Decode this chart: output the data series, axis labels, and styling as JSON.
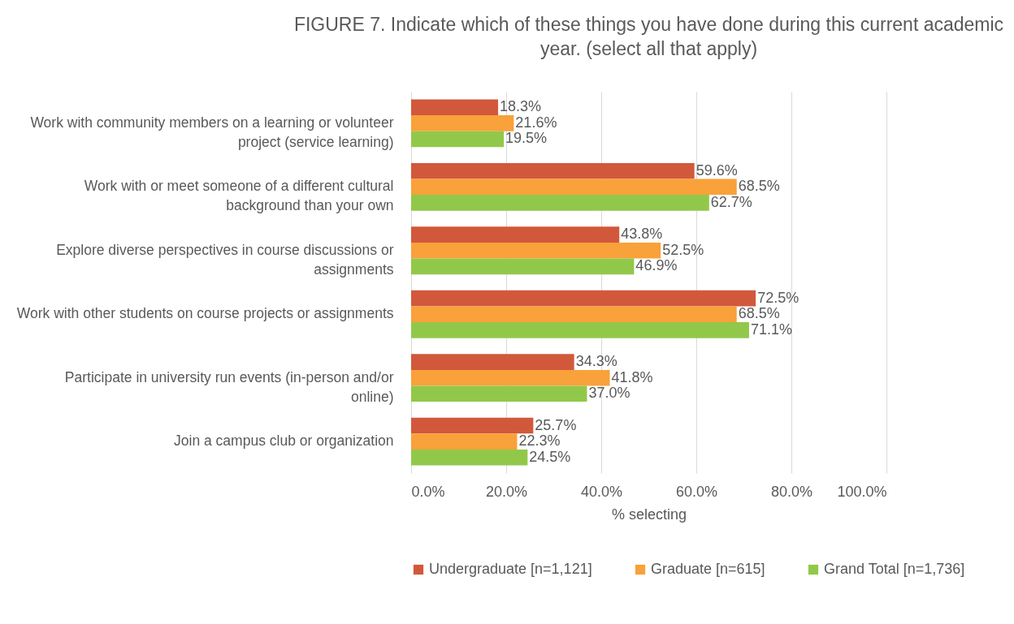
{
  "chart_data": {
    "type": "bar",
    "orientation": "horizontal",
    "title": "FIGURE 7. Indicate which of these things you have done during this current academic year. (select all that apply)",
    "xlabel": "% selecting",
    "categories": [
      "Work with community members on a learning or volunteer project (service learning)",
      "Work with or meet someone of a different cultural background than your own",
      "Explore diverse perspectives in course discussions or assignments",
      "Work with other students on course projects or assignments",
      "Participate in university run events (in-person and/or online)",
      "Join a campus club or organization"
    ],
    "series": [
      {
        "name": "Undergraduate [n=1,121]",
        "color": "#d2583c",
        "values": [
          18.3,
          59.6,
          43.8,
          72.5,
          34.3,
          25.7
        ],
        "value_labels": [
          "18.3%",
          "59.6%",
          "43.8%",
          "72.5%",
          "34.3%",
          "25.7%"
        ]
      },
      {
        "name": "Graduate [n=615]",
        "color": "#f9a13a",
        "values": [
          21.6,
          68.5,
          52.5,
          68.5,
          41.8,
          22.3
        ],
        "value_labels": [
          "21.6%",
          "68.5%",
          "52.5%",
          "68.5%",
          "41.8%",
          "22.3%"
        ]
      },
      {
        "name": "Grand Total [n=1,736]",
        "color": "#92c84a",
        "values": [
          19.5,
          62.7,
          46.9,
          71.1,
          37.0,
          24.5
        ],
        "value_labels": [
          "19.5%",
          "62.7%",
          "46.9%",
          "71.1%",
          "37.0%",
          "24.5%"
        ]
      }
    ],
    "xlim": [
      0,
      100
    ],
    "xticks": [
      {
        "value": 0,
        "label": "0.0%"
      },
      {
        "value": 20,
        "label": "20.0%"
      },
      {
        "value": 40,
        "label": "40.0%"
      },
      {
        "value": 60,
        "label": "60.0%"
      },
      {
        "value": 80,
        "label": "80.0%"
      },
      {
        "value": 100,
        "label": "100.0%"
      }
    ],
    "grid": "x",
    "legend": "bottom"
  }
}
